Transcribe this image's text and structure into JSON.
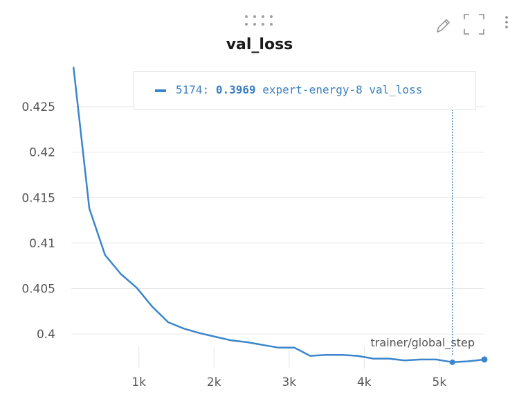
{
  "toolbar": {
    "drag_icon": "drag-handle-icon",
    "edit_icon": "pencil-icon",
    "fullscreen_icon": "fullscreen-icon",
    "more_icon": "more-vertical-icon"
  },
  "tooltip": {
    "step": "5174",
    "sep": ":",
    "value": "0.3969",
    "run_name": "expert-energy-8",
    "metric": "val_loss"
  },
  "colors": {
    "series": "#3a85cc",
    "grid": "#e6e6e6",
    "text": "#555555"
  },
  "chart_data": {
    "type": "line",
    "title": "val_loss",
    "xlabel": "trainer/global_step",
    "ylabel": "",
    "xlim": [
      100,
      5600
    ],
    "ylim": [
      0.3962,
      0.4295
    ],
    "x_ticks": [
      1000,
      2000,
      3000,
      4000,
      5000
    ],
    "x_tick_labels": [
      "1k",
      "2k",
      "3k",
      "4k",
      "5k"
    ],
    "y_ticks": [
      0.4,
      0.405,
      0.41,
      0.415,
      0.42,
      0.425
    ],
    "y_tick_labels": [
      "0.4",
      "0.405",
      "0.41",
      "0.415",
      "0.42",
      "0.425"
    ],
    "grid": true,
    "legend_position": "top-right",
    "hover_x": 5174,
    "series": [
      {
        "name": "expert-energy-8",
        "x": [
          130,
          340,
          550,
          760,
          970,
          1180,
          1390,
          1600,
          1810,
          2020,
          2230,
          2440,
          2650,
          2860,
          3070,
          3280,
          3490,
          3700,
          3910,
          4120,
          4330,
          4540,
          4750,
          4960,
          5174,
          5385,
          5600
        ],
        "y": [
          0.4293,
          0.4138,
          0.4087,
          0.4066,
          0.4051,
          0.403,
          0.4013,
          0.4006,
          0.4001,
          0.3997,
          0.3993,
          0.3991,
          0.3988,
          0.3985,
          0.3985,
          0.3976,
          0.3977,
          0.3977,
          0.3976,
          0.3973,
          0.3973,
          0.3971,
          0.3972,
          0.3972,
          0.3969,
          0.397,
          0.3972
        ]
      }
    ]
  }
}
